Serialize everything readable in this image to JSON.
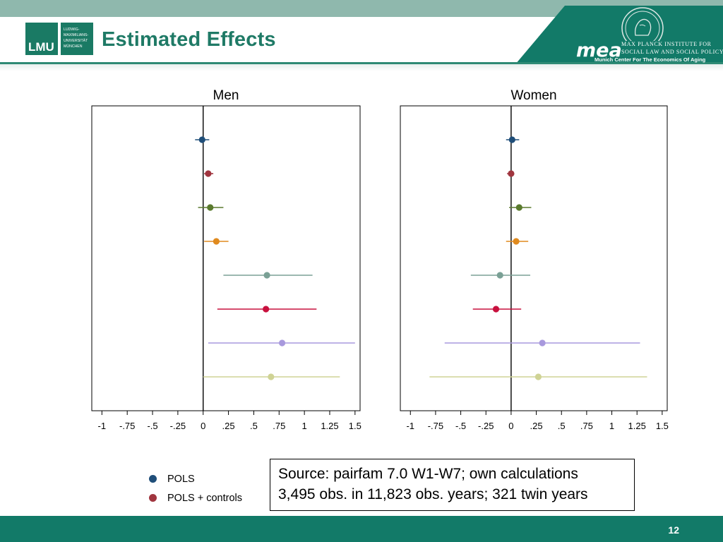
{
  "header": {
    "title": "Estimated Effects",
    "lmu_logo_text": "LMU",
    "lmu_sub_lines": [
      "LUDWIG-",
      "MAXIMILIANS-",
      "UNIVERSITÄT",
      "MÜNCHEN"
    ],
    "mea_word": "mea",
    "mpi_line1": "MAX PLANCK INSTITUTE FOR",
    "mpi_line2": "SOCIAL LAW AND SOCIAL POLICY",
    "mea_subtitle": "Munich Center For The Economics Of Aging",
    "colors": {
      "brand": "#127a68",
      "title": "#1f7a66",
      "top_band": "#8fb8ad"
    }
  },
  "chart_data": [
    {
      "type": "scatter",
      "subtype": "coefficient-plot-with-ci",
      "title": "Men",
      "xlim": [
        -1.1,
        1.55
      ],
      "ticks": [
        -1,
        -0.75,
        -0.5,
        -0.25,
        0,
        0.25,
        0.5,
        0.75,
        1,
        1.25,
        1.5
      ],
      "tick_labels": [
        "-1",
        "-.75",
        "-.5",
        "-.25",
        "0",
        ".25",
        ".5",
        ".75",
        "1",
        "1.25",
        "1.5"
      ],
      "reference_line": 0,
      "series": [
        {
          "name": "POLS",
          "color": "#1f4e79",
          "estimate": -0.01,
          "ci": [
            -0.08,
            0.06
          ]
        },
        {
          "name": "POLS + controls",
          "color": "#a0353f",
          "estimate": 0.05,
          "ci": [
            0.01,
            0.1
          ]
        },
        {
          "name": "",
          "color": "#5a7a2e",
          "estimate": 0.07,
          "ci": [
            -0.05,
            0.2
          ]
        },
        {
          "name": "",
          "color": "#e08a1e",
          "estimate": 0.13,
          "ci": [
            0.01,
            0.25
          ]
        },
        {
          "name": "",
          "color": "#7aa095",
          "estimate": 0.63,
          "ci": [
            0.2,
            1.08
          ]
        },
        {
          "name": "",
          "color": "#c8103e",
          "estimate": 0.62,
          "ci": [
            0.14,
            1.12
          ]
        },
        {
          "name": "",
          "color": "#a899dd",
          "estimate": 0.78,
          "ci": [
            0.05,
            1.5
          ]
        },
        {
          "name": "",
          "color": "#cfd395",
          "estimate": 0.67,
          "ci": [
            0.0,
            1.35
          ]
        }
      ]
    },
    {
      "type": "scatter",
      "subtype": "coefficient-plot-with-ci",
      "title": "Women",
      "xlim": [
        -1.1,
        1.55
      ],
      "ticks": [
        -1,
        -0.75,
        -0.5,
        -0.25,
        0,
        0.25,
        0.5,
        0.75,
        1,
        1.25,
        1.5
      ],
      "tick_labels": [
        "-1",
        "-.75",
        "-.5",
        "-.25",
        "0",
        ".25",
        ".5",
        ".75",
        "1",
        "1.25",
        "1.5"
      ],
      "reference_line": 0,
      "series": [
        {
          "name": "POLS",
          "color": "#1f4e79",
          "estimate": 0.01,
          "ci": [
            -0.05,
            0.08
          ]
        },
        {
          "name": "POLS + controls",
          "color": "#a0353f",
          "estimate": 0.0,
          "ci": [
            -0.04,
            0.03
          ]
        },
        {
          "name": "",
          "color": "#5a7a2e",
          "estimate": 0.08,
          "ci": [
            -0.02,
            0.2
          ]
        },
        {
          "name": "",
          "color": "#e08a1e",
          "estimate": 0.05,
          "ci": [
            -0.05,
            0.17
          ]
        },
        {
          "name": "",
          "color": "#7aa095",
          "estimate": -0.11,
          "ci": [
            -0.4,
            0.19
          ]
        },
        {
          "name": "",
          "color": "#c8103e",
          "estimate": -0.15,
          "ci": [
            -0.38,
            0.1
          ]
        },
        {
          "name": "",
          "color": "#a899dd",
          "estimate": 0.31,
          "ci": [
            -0.66,
            1.28
          ]
        },
        {
          "name": "",
          "color": "#cfd395",
          "estimate": 0.27,
          "ci": [
            -0.81,
            1.35
          ]
        }
      ]
    }
  ],
  "legend": {
    "items": [
      {
        "label": "POLS",
        "color": "#1f4e79"
      },
      {
        "label": "POLS + controls",
        "color": "#a0353f"
      }
    ]
  },
  "source": {
    "line1": "Source: pairfam 7.0 W1-W7; own calculations",
    "line2": "3,495 obs. in 11,823 obs. years; 321 twin years"
  },
  "footer": {
    "page_number": "12"
  }
}
